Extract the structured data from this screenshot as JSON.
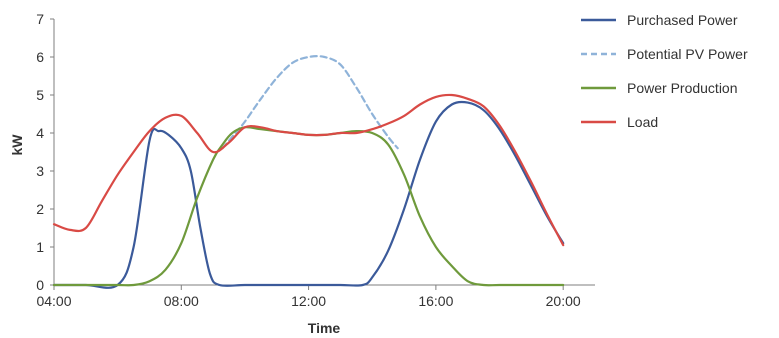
{
  "chart_data": {
    "type": "line",
    "title": "",
    "xlabel": "Time",
    "ylabel": "kW",
    "xlim": [
      4,
      21
    ],
    "ylim": [
      0,
      7
    ],
    "x_ticks": [
      {
        "value": 4,
        "label": "04:00"
      },
      {
        "value": 8,
        "label": "08:00"
      },
      {
        "value": 12,
        "label": "12:00"
      },
      {
        "value": 16,
        "label": "16:00"
      },
      {
        "value": 20,
        "label": "20:00"
      }
    ],
    "y_ticks": [
      0,
      1,
      2,
      3,
      4,
      5,
      6,
      7
    ],
    "grid": false,
    "legend_position": "right",
    "series": [
      {
        "name": "Purchased Power",
        "color": "#3b5a9a",
        "dash": "solid",
        "points": [
          [
            4,
            0
          ],
          [
            5,
            0
          ],
          [
            6,
            0
          ],
          [
            6.5,
            1.0
          ],
          [
            7,
            3.8
          ],
          [
            7.3,
            4.05
          ],
          [
            7.6,
            3.95
          ],
          [
            8,
            3.6
          ],
          [
            8.3,
            3.0
          ],
          [
            8.6,
            1.5
          ],
          [
            8.9,
            0.3
          ],
          [
            9.2,
            0
          ],
          [
            10,
            0
          ],
          [
            11,
            0
          ],
          [
            12,
            0
          ],
          [
            13,
            0
          ],
          [
            13.7,
            0
          ],
          [
            14,
            0.2
          ],
          [
            14.5,
            0.9
          ],
          [
            15,
            2.0
          ],
          [
            15.5,
            3.3
          ],
          [
            16,
            4.3
          ],
          [
            16.5,
            4.75
          ],
          [
            17,
            4.8
          ],
          [
            17.5,
            4.6
          ],
          [
            18,
            4.1
          ],
          [
            18.5,
            3.4
          ],
          [
            19,
            2.6
          ],
          [
            19.5,
            1.8
          ],
          [
            20,
            1.1
          ]
        ]
      },
      {
        "name": "Potential PV Power",
        "color": "#8fb3d9",
        "dash": "dashed",
        "points": [
          [
            9.3,
            3.6
          ],
          [
            9.7,
            4.0
          ],
          [
            10,
            4.3
          ],
          [
            10.5,
            4.9
          ],
          [
            11,
            5.45
          ],
          [
            11.5,
            5.85
          ],
          [
            12,
            6.0
          ],
          [
            12.5,
            6.0
          ],
          [
            13,
            5.8
          ],
          [
            13.5,
            5.2
          ],
          [
            14,
            4.5
          ],
          [
            14.5,
            3.9
          ],
          [
            14.8,
            3.6
          ]
        ]
      },
      {
        "name": "Power Production",
        "color": "#6f9a3c",
        "dash": "solid",
        "points": [
          [
            4,
            0
          ],
          [
            5,
            0
          ],
          [
            6,
            0
          ],
          [
            6.5,
            0
          ],
          [
            7,
            0.1
          ],
          [
            7.5,
            0.4
          ],
          [
            8,
            1.1
          ],
          [
            8.5,
            2.3
          ],
          [
            9,
            3.3
          ],
          [
            9.3,
            3.7
          ],
          [
            9.6,
            4.0
          ],
          [
            10,
            4.15
          ],
          [
            10.5,
            4.1
          ],
          [
            11,
            4.05
          ],
          [
            11.5,
            4.0
          ],
          [
            12,
            3.95
          ],
          [
            12.5,
            3.95
          ],
          [
            13,
            4.0
          ],
          [
            13.5,
            4.05
          ],
          [
            14,
            4.0
          ],
          [
            14.5,
            3.7
          ],
          [
            15,
            2.9
          ],
          [
            15.5,
            1.8
          ],
          [
            16,
            1.0
          ],
          [
            16.5,
            0.5
          ],
          [
            17,
            0.1
          ],
          [
            17.5,
            0
          ],
          [
            18,
            0
          ],
          [
            19,
            0
          ],
          [
            20,
            0
          ]
        ]
      },
      {
        "name": "Load",
        "color": "#d94a45",
        "dash": "solid",
        "points": [
          [
            4,
            1.6
          ],
          [
            4.5,
            1.45
          ],
          [
            5,
            1.5
          ],
          [
            5.5,
            2.2
          ],
          [
            6,
            2.9
          ],
          [
            6.5,
            3.5
          ],
          [
            7,
            4.05
          ],
          [
            7.5,
            4.4
          ],
          [
            8,
            4.45
          ],
          [
            8.5,
            4.0
          ],
          [
            9,
            3.5
          ],
          [
            9.5,
            3.75
          ],
          [
            10,
            4.15
          ],
          [
            10.5,
            4.15
          ],
          [
            11,
            4.05
          ],
          [
            11.5,
            4.0
          ],
          [
            12,
            3.95
          ],
          [
            12.5,
            3.95
          ],
          [
            13,
            4.0
          ],
          [
            13.5,
            4.0
          ],
          [
            14,
            4.1
          ],
          [
            14.5,
            4.25
          ],
          [
            15,
            4.45
          ],
          [
            15.5,
            4.75
          ],
          [
            16,
            4.95
          ],
          [
            16.5,
            5.0
          ],
          [
            17,
            4.9
          ],
          [
            17.5,
            4.7
          ],
          [
            18,
            4.2
          ],
          [
            18.5,
            3.5
          ],
          [
            19,
            2.7
          ],
          [
            19.5,
            1.85
          ],
          [
            20,
            1.05
          ]
        ]
      }
    ]
  }
}
